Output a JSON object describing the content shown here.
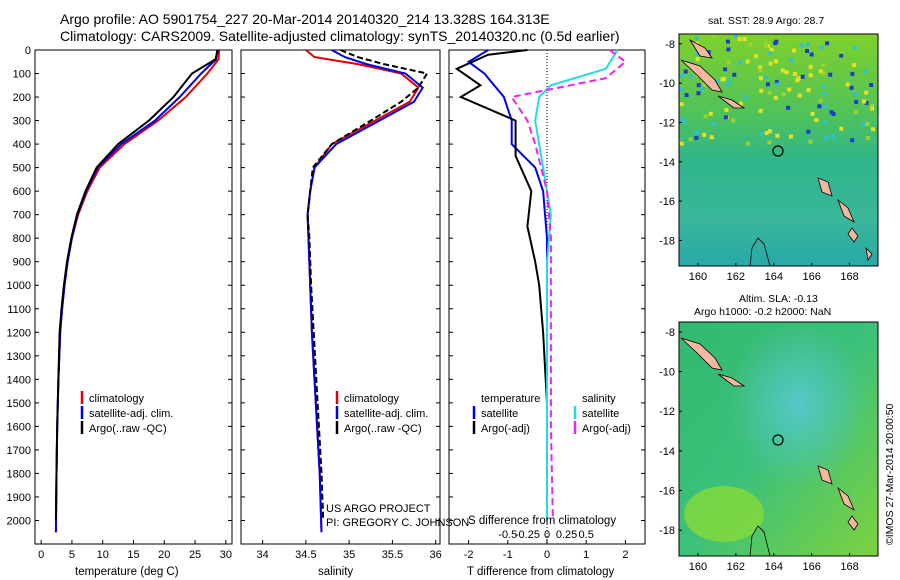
{
  "header": {
    "line1": "Argo profile: AO 5901754_227 20-Mar-2014 20140320_214 13.328S 164.313E",
    "line2": "Climatology: CARS2009. Satellite-adjusted climatology: synTS_20140320.nc (0.5d earlier)"
  },
  "colors": {
    "climatology": "#e00000",
    "satellite": "#0000ee",
    "argo": "#000000",
    "sat_salinity": "#22dddd",
    "argo_salinity": "#ee22ee"
  },
  "depth_ticks": [
    "0",
    "100",
    "200",
    "300",
    "400",
    "500",
    "600",
    "700",
    "800",
    "900",
    "1000",
    "1100",
    "1200",
    "1300",
    "1400",
    "1500",
    "1600",
    "1700",
    "1800",
    "1900",
    "2000"
  ],
  "panel_temp": {
    "xlabel": "temperature (deg C)",
    "xticks": [
      "0",
      "5",
      "10",
      "15",
      "20",
      "25",
      "30"
    ],
    "legend": [
      "climatology",
      "satellite-adj. clim.",
      "Argo(..raw -QC)"
    ]
  },
  "panel_sal": {
    "xlabel": "salinity",
    "xticks": [
      "34",
      "34.5",
      "35",
      "35.5",
      "36"
    ],
    "legend": [
      "climatology",
      "satellite-adj. clim.",
      "Argo(..raw -QC)"
    ],
    "credit1": "US ARGO PROJECT",
    "credit2": "PI: GREGORY C. JOHNSON"
  },
  "panel_diff": {
    "legend_t_head": "temperature",
    "legend_s_head": "salinity",
    "legend_t": [
      "satellite",
      "Argo(-adj)"
    ],
    "legend_s": [
      "satellite",
      "Argo(-adj)"
    ],
    "s_ticks": [
      "-0.5",
      "-0.25",
      "0",
      "0.25",
      "0.5"
    ],
    "t_ticks": [
      "-2",
      "-1",
      "0",
      "1",
      "2"
    ],
    "s_label": "S difference from climatology",
    "t_label": "T difference from climatology"
  },
  "map_sst": {
    "title": "sat. SST: 28.9  Argo: 28.7",
    "yticks": [
      "-8",
      "-10",
      "-12",
      "-14",
      "-16",
      "-18"
    ],
    "xticks": [
      "160",
      "162",
      "164",
      "166",
      "168"
    ]
  },
  "map_sla": {
    "title1": "Altim. SLA: -0.13",
    "title2": "Argo h1000: -0.2 h2000: NaN",
    "yticks": [
      "-8",
      "-10",
      "-12",
      "-14",
      "-16",
      "-18"
    ],
    "xticks": [
      "160",
      "162",
      "164",
      "166",
      "168"
    ]
  },
  "stamp": "©IMOS 27-Mar-2014 20:00:50",
  "chart_data": [
    {
      "type": "line",
      "title": "",
      "xlabel": "temperature (deg C)",
      "ylabel": "",
      "xlim": [
        -1,
        31
      ],
      "ylim": [
        2100,
        0
      ],
      "series": [
        {
          "name": "climatology",
          "x": [
            28.9,
            28.8,
            27,
            23.5,
            19,
            13.5,
            9.5,
            7.5,
            6,
            5,
            4.3,
            3.8,
            3.4,
            3.1,
            2.8,
            2.6,
            2.5,
            2.4
          ],
          "y": [
            0,
            40,
            100,
            200,
            300,
            400,
            500,
            600,
            700,
            800,
            900,
            1000,
            1100,
            1200,
            1400,
            1600,
            1800,
            2050
          ]
        },
        {
          "name": "satellite-adj. clim.",
          "x": [
            28.6,
            28.4,
            26,
            22.5,
            18.5,
            13,
            9.2,
            7.3,
            5.9,
            5,
            4.3,
            3.8,
            3.4,
            3.1,
            2.8,
            2.6,
            2.5,
            2.4
          ],
          "y": [
            0,
            40,
            100,
            200,
            300,
            400,
            500,
            600,
            700,
            800,
            900,
            1000,
            1100,
            1200,
            1400,
            1600,
            1800,
            2050
          ]
        },
        {
          "name": "Argo(..raw -QC)",
          "x": [
            28.7,
            28.3,
            24.5,
            21.5,
            17.5,
            12.5,
            9,
            7.2,
            5.8,
            4.9,
            4.2,
            3.7,
            3.3,
            3,
            2.8,
            2.6,
            2.5,
            2.4
          ],
          "y": [
            0,
            40,
            100,
            200,
            300,
            400,
            500,
            600,
            700,
            800,
            900,
            1000,
            1100,
            1200,
            1400,
            1600,
            1800,
            2000
          ]
        }
      ]
    },
    {
      "type": "line",
      "title": "",
      "xlabel": "salinity",
      "ylabel": "",
      "xlim": [
        33.75,
        36.05
      ],
      "ylim": [
        2100,
        0
      ],
      "series": [
        {
          "name": "climatology",
          "x": [
            34.5,
            34.6,
            35.1,
            35.6,
            35.8,
            35.7,
            35.3,
            34.8,
            34.6,
            34.55,
            34.52,
            34.53,
            34.55,
            34.57,
            34.6,
            34.63,
            34.66,
            34.68
          ],
          "y": [
            0,
            30,
            60,
            100,
            160,
            220,
            300,
            400,
            500,
            600,
            700,
            800,
            1000,
            1200,
            1400,
            1600,
            1800,
            2050
          ]
        },
        {
          "name": "satellite-adj. clim.",
          "x": [
            34.8,
            34.95,
            35.2,
            35.65,
            35.85,
            35.75,
            35.35,
            34.85,
            34.6,
            34.55,
            34.52,
            34.53,
            34.55,
            34.57,
            34.6,
            34.63,
            34.66,
            34.68
          ],
          "y": [
            0,
            30,
            60,
            100,
            160,
            220,
            300,
            400,
            500,
            600,
            700,
            800,
            1000,
            1200,
            1400,
            1600,
            1800,
            2050
          ]
        },
        {
          "name": "Argo(..raw -QC)",
          "x": [
            34.9,
            35.1,
            35.4,
            35.9,
            35.8,
            35.6,
            35.25,
            34.8,
            34.58,
            34.55,
            34.52,
            34.54,
            34.56,
            34.59,
            34.62,
            34.65,
            34.68,
            34.7
          ],
          "y": [
            0,
            30,
            60,
            100,
            160,
            220,
            300,
            400,
            500,
            600,
            700,
            800,
            1000,
            1200,
            1400,
            1600,
            1800,
            2000
          ]
        }
      ]
    },
    {
      "type": "line",
      "title": "",
      "xlabel": "T difference from climatology",
      "ylabel": "",
      "xlim": [
        -2.5,
        2.5
      ],
      "ylim": [
        2100,
        0
      ],
      "series": [
        {
          "name": "temperature satellite",
          "x": [
            -1.5,
            -2,
            -1.6,
            -1.1,
            -0.9,
            -0.9,
            -0.6,
            -0.3,
            -0.1,
            0,
            0,
            0,
            0
          ],
          "y": [
            0,
            50,
            100,
            200,
            300,
            400,
            450,
            500,
            600,
            800,
            1000,
            1500,
            2000
          ]
        },
        {
          "name": "temperature Argo(-adj)",
          "x": [
            -0.5,
            -1.5,
            -2.3,
            -1.7,
            -2.2,
            -0.8,
            -0.8,
            -0.4,
            -0.5,
            -0.3,
            -0.2,
            -0.1,
            0
          ],
          "y": [
            0,
            20,
            80,
            150,
            200,
            300,
            450,
            600,
            750,
            900,
            1000,
            1200,
            1500
          ]
        },
        {
          "name": "salinity satellite",
          "x": [
            1.8,
            1.5,
            0.1,
            -0.2,
            -0.3,
            -0.1,
            0.1,
            0,
            0,
            0,
            0
          ],
          "y": [
            0,
            80,
            150,
            200,
            300,
            500,
            700,
            900,
            1200,
            1600,
            2000
          ]
        },
        {
          "name": "salinity Argo(-adj)",
          "x": [
            1.6,
            2,
            1.5,
            -0.9,
            -0.5,
            -0.3,
            0,
            0.1,
            0.1,
            0.1,
            0.15
          ],
          "y": [
            0,
            50,
            120,
            200,
            300,
            400,
            600,
            800,
            1200,
            1600,
            2000
          ]
        }
      ]
    }
  ]
}
